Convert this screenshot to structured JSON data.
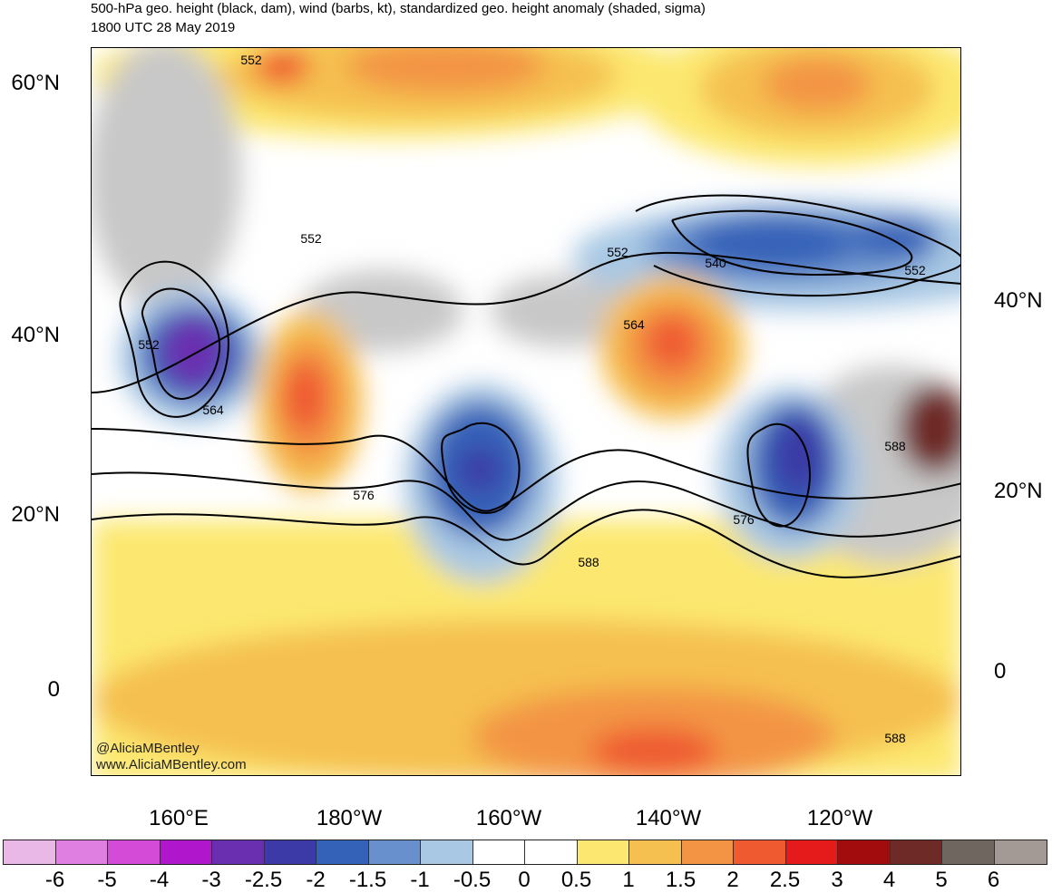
{
  "header": {
    "title_line1": "500-hPa geo. height (black, dam), wind (barbs, kt), standardized geo. height anomaly (shaded, sigma)",
    "title_line2": "1800 UTC 28 May 2019"
  },
  "axes": {
    "lat_left": [
      "60°N",
      "40°N",
      "20°N",
      "0"
    ],
    "lat_right": [
      "40°N",
      "20°N",
      "0"
    ],
    "lon_bottom": [
      "160°E",
      "180°W",
      "160°W",
      "140°W",
      "120°W"
    ]
  },
  "contour_labels": [
    "552",
    "552",
    "552",
    "552",
    "540",
    "552",
    "564",
    "564",
    "576",
    "576",
    "588",
    "588",
    "588"
  ],
  "credit": {
    "twitter": "@AliciaMBentley",
    "website": "www.AliciaMBentley.com"
  },
  "colorbar": {
    "labels": [
      "-6",
      "-5",
      "-4",
      "-3",
      "-2.5",
      "-2",
      "-1.5",
      "-1",
      "-0.5",
      "0",
      "0.5",
      "1",
      "1.5",
      "2",
      "2.5",
      "3",
      "4",
      "5",
      "6"
    ],
    "colors": [
      "#e9b8e6",
      "#e07fe2",
      "#d44bd8",
      "#b016cc",
      "#6a2fb0",
      "#3b3aa6",
      "#3462b8",
      "#6890cc",
      "#a8c8e4",
      "#ffffff",
      "#ffffff",
      "#fce870",
      "#f5c050",
      "#f39444",
      "#ef5a30",
      "#e51a1a",
      "#a30c0c",
      "#6e2a26",
      "#706660",
      "#a39a96"
    ]
  }
}
